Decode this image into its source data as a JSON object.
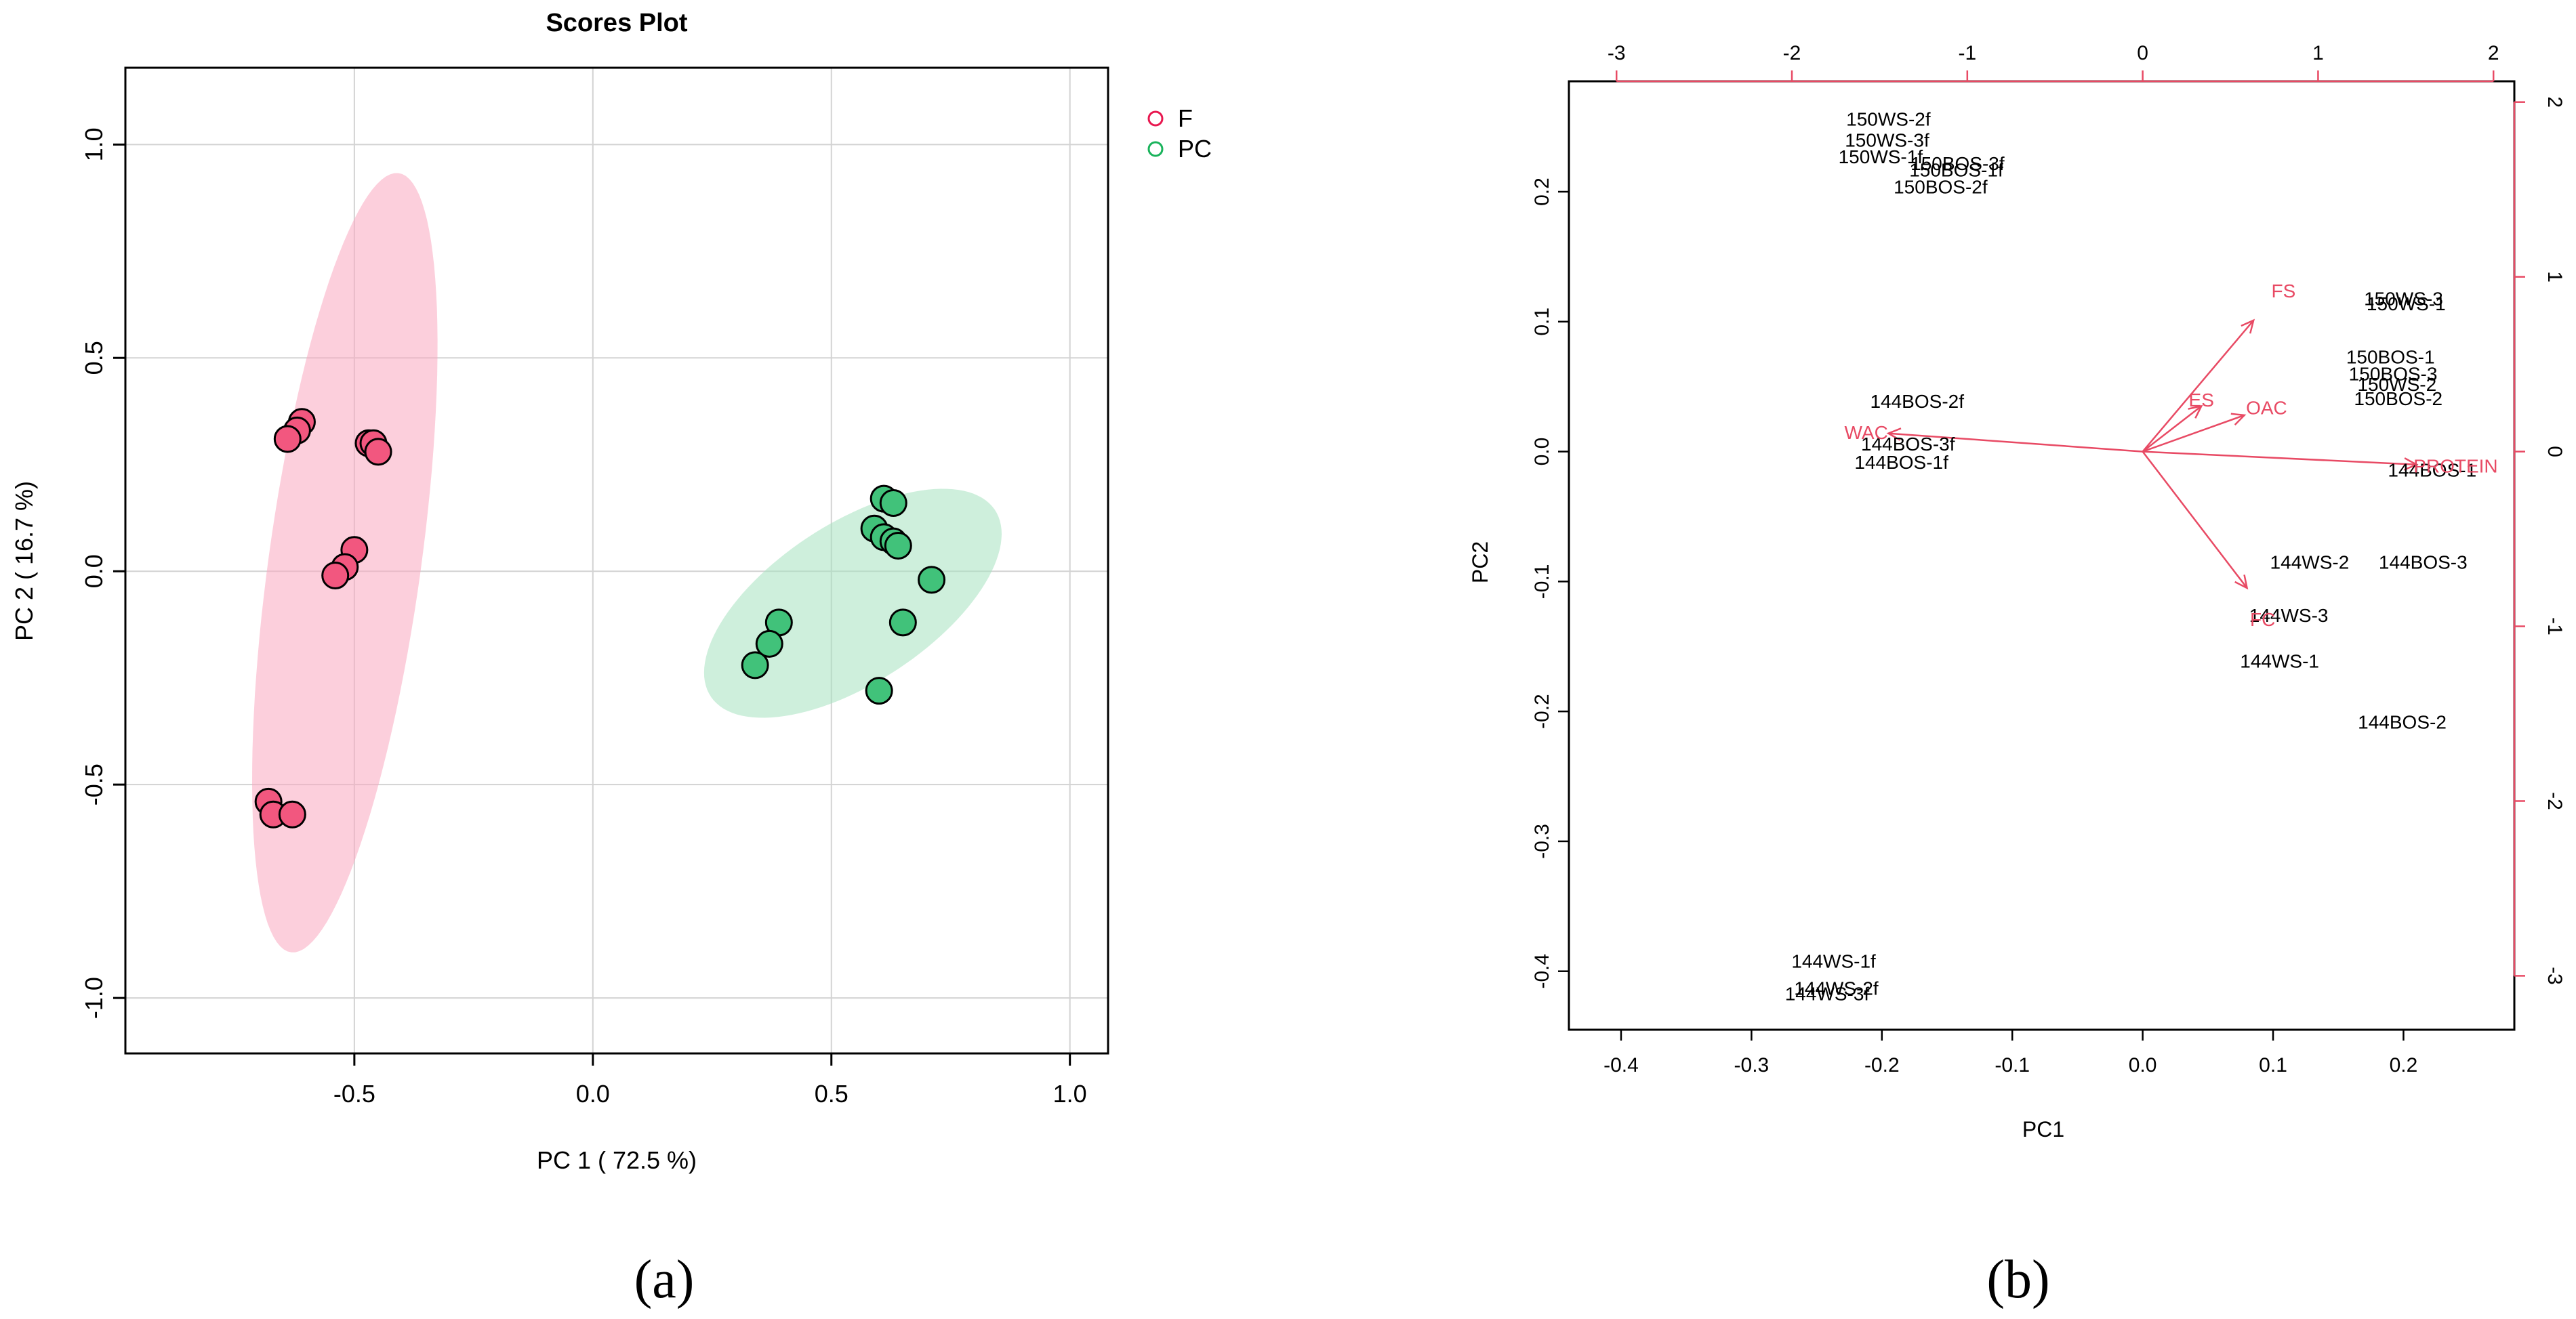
{
  "chart_data": [
    {
      "panel_label": "(a)",
      "type": "scatter",
      "title": "Scores Plot",
      "xlabel": "PC 1 ( 72.5 %)",
      "ylabel": "PC 2 ( 16.7 %)",
      "xlim": [
        -0.98,
        1.08
      ],
      "ylim": [
        -1.13,
        1.18
      ],
      "xticks": [
        -0.5,
        0.0,
        0.5,
        1.0
      ],
      "xtick_labels": [
        "-0.5",
        "0.0",
        "0.5",
        "1.0"
      ],
      "yticks": [
        -1.0,
        -0.5,
        0.0,
        0.5,
        1.0
      ],
      "ytick_labels": [
        "-1.0",
        "-0.5",
        "0.0",
        "0.5",
        "1.0"
      ],
      "grid": true,
      "legend_position": "top-right outside",
      "series": [
        {
          "name": "F",
          "color": "#f2577f",
          "edge_color": "#e8174f",
          "ellipse_color": "#f9a8bf",
          "ellipse": {
            "center": [
              -0.52,
              0.02
            ],
            "semi_major": 0.92,
            "semi_minor": 0.16,
            "angle_deg": 83
          },
          "points": [
            [
              -0.61,
              0.35
            ],
            [
              -0.62,
              0.33
            ],
            [
              -0.64,
              0.31
            ],
            [
              -0.47,
              0.3
            ],
            [
              -0.46,
              0.3
            ],
            [
              -0.45,
              0.28
            ],
            [
              -0.5,
              0.05
            ],
            [
              -0.52,
              0.01
            ],
            [
              -0.54,
              -0.01
            ],
            [
              -0.68,
              -0.54
            ],
            [
              -0.67,
              -0.57
            ],
            [
              -0.63,
              -0.57
            ]
          ]
        },
        {
          "name": "PC",
          "color": "#41c27a",
          "edge_color": "#19b35b",
          "ellipse_color": "#a6e2bf",
          "ellipse": {
            "center": [
              0.545,
              -0.075
            ],
            "semi_major": 0.37,
            "semi_minor": 0.18,
            "angle_deg": 38
          },
          "points": [
            [
              0.61,
              0.17
            ],
            [
              0.63,
              0.16
            ],
            [
              0.59,
              0.1
            ],
            [
              0.61,
              0.08
            ],
            [
              0.63,
              0.07
            ],
            [
              0.64,
              0.06
            ],
            [
              0.71,
              -0.02
            ],
            [
              0.39,
              -0.12
            ],
            [
              0.65,
              -0.12
            ],
            [
              0.37,
              -0.17
            ],
            [
              0.34,
              -0.22
            ],
            [
              0.6,
              -0.28
            ]
          ]
        }
      ]
    },
    {
      "panel_label": "(b)",
      "type": "scatter",
      "subtype": "biplot",
      "xlabel": "PC1",
      "ylabel": "PC2",
      "xlim": [
        -0.44,
        0.285
      ],
      "ylim": [
        -0.445,
        0.285
      ],
      "xticks": [
        -0.4,
        -0.3,
        -0.2,
        -0.1,
        0.0,
        0.1,
        0.2
      ],
      "xtick_labels": [
        "-0.4",
        "-0.3",
        "-0.2",
        "-0.1",
        "0.0",
        "0.1",
        "0.2"
      ],
      "yticks": [
        -0.4,
        -0.3,
        -0.2,
        -0.1,
        0.0,
        0.1,
        0.2
      ],
      "ytick_labels": [
        "-0.4",
        "-0.3",
        "-0.2",
        "-0.1",
        "0.0",
        "0.1",
        "0.2"
      ],
      "secondary_xticks": [
        -3,
        -2,
        -1,
        0,
        1,
        2
      ],
      "secondary_xtick_labels": [
        "-3",
        "-2",
        "-1",
        "0",
        "1",
        "2"
      ],
      "secondary_yticks": [
        2,
        1,
        0,
        -1,
        -2,
        -3
      ],
      "secondary_ytick_labels": [
        "2",
        "1",
        "0",
        "-1",
        "-2",
        "-3"
      ],
      "secondary_scale": 0.1345,
      "label_color": "#000000",
      "loading_color": "#e84a64",
      "samples": [
        {
          "label": "150WS-2f",
          "x": -0.195,
          "y": 0.256
        },
        {
          "label": "150WS-3f",
          "x": -0.196,
          "y": 0.24
        },
        {
          "label": "150WS-1f",
          "x": -0.201,
          "y": 0.227
        },
        {
          "label": "150BOS-3f",
          "x": -0.142,
          "y": 0.222
        },
        {
          "label": "150BOS-1f",
          "x": -0.143,
          "y": 0.217
        },
        {
          "label": "150BOS-2f",
          "x": -0.155,
          "y": 0.204
        },
        {
          "label": "150WS-3",
          "x": 0.2,
          "y": 0.118
        },
        {
          "label": "150WS-1",
          "x": 0.202,
          "y": 0.114
        },
        {
          "label": "150BOS-1",
          "x": 0.19,
          "y": 0.073
        },
        {
          "label": "150BOS-3",
          "x": 0.192,
          "y": 0.06
        },
        {
          "label": "150WS-2",
          "x": 0.195,
          "y": 0.052
        },
        {
          "label": "150BOS-2",
          "x": 0.196,
          "y": 0.041
        },
        {
          "label": "144BOS-2f",
          "x": -0.173,
          "y": 0.039
        },
        {
          "label": "144BOS-3f",
          "x": -0.18,
          "y": 0.006
        },
        {
          "label": "144BOS-1f",
          "x": -0.185,
          "y": -0.008
        },
        {
          "label": "144BOS-1",
          "x": 0.222,
          "y": -0.014
        },
        {
          "label": "144WS-2",
          "x": 0.128,
          "y": -0.085
        },
        {
          "label": "144BOS-3",
          "x": 0.215,
          "y": -0.085
        },
        {
          "label": "144WS-3",
          "x": 0.112,
          "y": -0.126
        },
        {
          "label": "144WS-1",
          "x": 0.105,
          "y": -0.161
        },
        {
          "label": "144BOS-2",
          "x": 0.199,
          "y": -0.208
        },
        {
          "label": "144WS-1f",
          "x": -0.237,
          "y": -0.392
        },
        {
          "label": "144WS-2f",
          "x": -0.235,
          "y": -0.413
        },
        {
          "label": "144WS-3f",
          "x": -0.242,
          "y": -0.417
        }
      ],
      "loadings": [
        {
          "label": "FS",
          "x": 0.085,
          "y": 0.101,
          "label_x": 0.108,
          "label_y": 0.124
        },
        {
          "label": "ES",
          "x": 0.045,
          "y": 0.035,
          "label_x": 0.045,
          "label_y": 0.04
        },
        {
          "label": "OAC",
          "x": 0.078,
          "y": 0.028,
          "label_x": 0.095,
          "label_y": 0.034
        },
        {
          "label": "WAC",
          "x": -0.195,
          "y": 0.014,
          "label_x": -0.212,
          "label_y": 0.015
        },
        {
          "label": "PROTEIN",
          "x": 0.21,
          "y": -0.01,
          "label_x": 0.24,
          "label_y": -0.011
        },
        {
          "label": "FC",
          "x": 0.08,
          "y": -0.105,
          "label_x": 0.092,
          "label_y": -0.129
        }
      ]
    }
  ],
  "legend": {
    "items": [
      {
        "label": "F",
        "color": "#e8174f"
      },
      {
        "label": "PC",
        "color": "#19b35b"
      }
    ]
  }
}
